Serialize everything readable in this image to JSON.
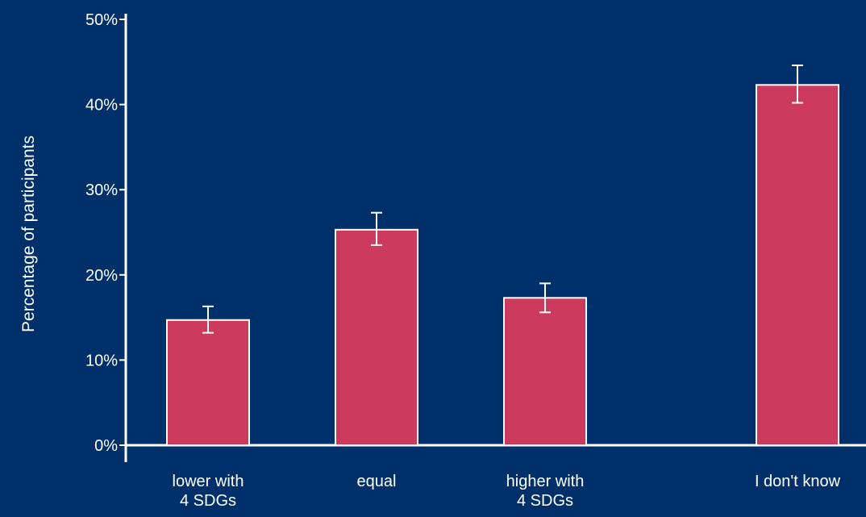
{
  "chart_data": {
    "type": "bar",
    "ylabel": "Percentage of participants",
    "xlabel": "",
    "title": "",
    "categories": [
      [
        "lower with",
        "4 SDGs"
      ],
      [
        "equal"
      ],
      [
        "higher with",
        "4 SDGs"
      ],
      [
        "I don't know"
      ]
    ],
    "values": [
      14.7,
      25.3,
      17.3,
      42.3
    ],
    "error_low": [
      13.2,
      23.5,
      15.6,
      40.2
    ],
    "error_high": [
      16.3,
      27.3,
      19.0,
      44.6
    ],
    "ylim": [
      0,
      50
    ],
    "yticks": [
      0,
      10,
      20,
      30,
      40,
      50
    ],
    "ytick_labels": [
      "0%",
      "10%",
      "20%",
      "30%",
      "40%",
      "50%"
    ],
    "grid": false,
    "colors": {
      "background": "#00306a",
      "bar_fill": "#cc3a5e",
      "bar_edge": "#ffffff",
      "axis": "#ffffff",
      "text": "#ffffff"
    }
  }
}
